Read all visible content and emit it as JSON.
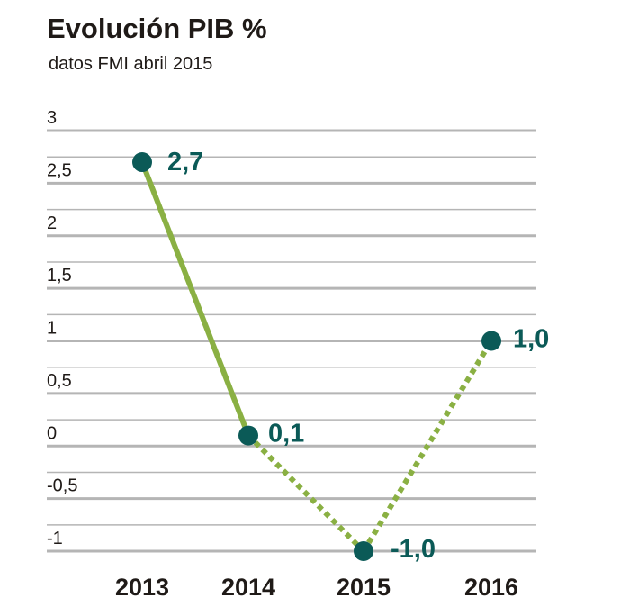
{
  "chart_data": {
    "type": "line",
    "title": "Evolución PIB %",
    "subtitle": "datos FMI abril 2015",
    "categories": [
      "2013",
      "2014",
      "2015",
      "2016"
    ],
    "values": [
      2.7,
      0.1,
      -1.0,
      1.0
    ],
    "value_labels": [
      "2,7",
      "0,1",
      "-1,0",
      "1,0"
    ],
    "projected_from_index": 1,
    "yticks": [
      3,
      2.5,
      2,
      1.5,
      1,
      0.5,
      0,
      -0.5,
      -1
    ],
    "ytick_labels": [
      "3",
      "2,5",
      "2",
      "1,5",
      "1",
      "0,5",
      "0",
      "-0,5",
      "-1"
    ],
    "ylim": [
      -1,
      3
    ],
    "grid": true,
    "colors": {
      "line": "#8ab043",
      "marker": "#0b5a57",
      "label": "#0b5a57",
      "grid": "#b5b5b5",
      "text": "#1f1a17"
    }
  }
}
